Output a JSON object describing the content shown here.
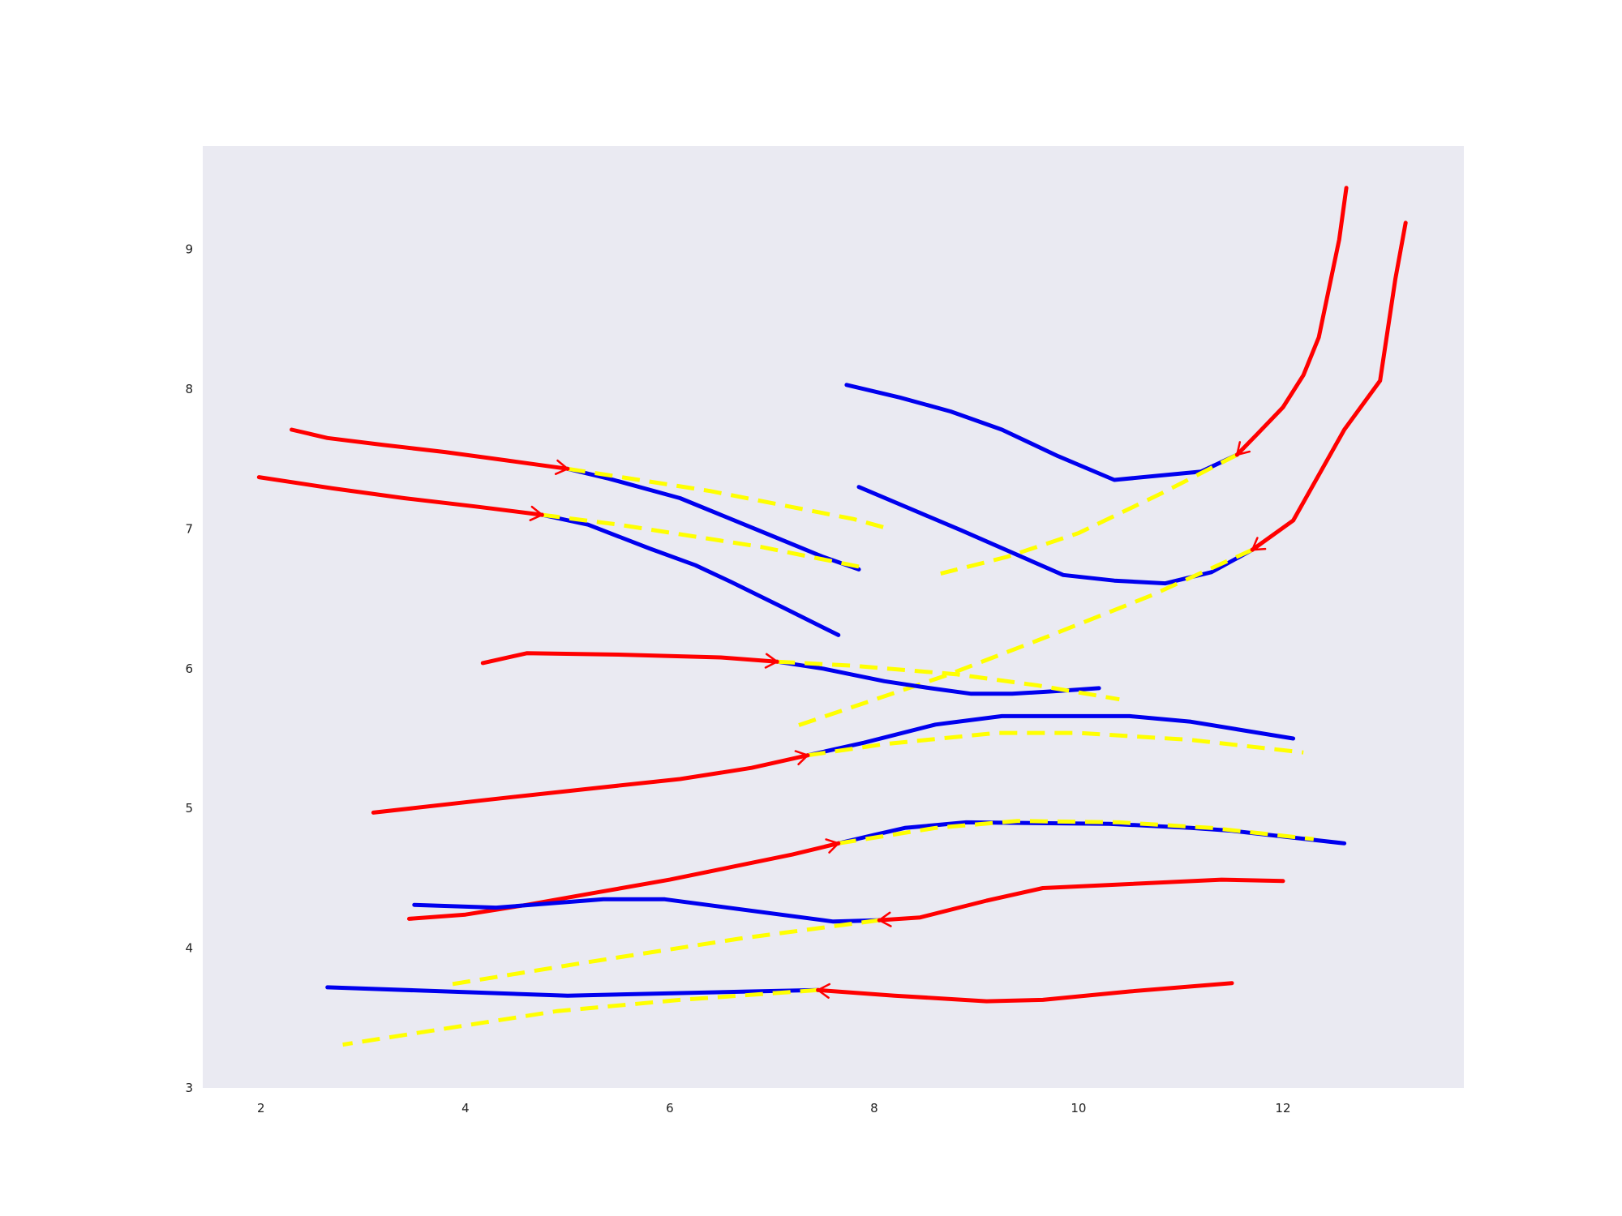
{
  "chart_data": {
    "type": "line",
    "title": "",
    "xlabel": "",
    "ylabel": "",
    "xlim": [
      1.43,
      13.77
    ],
    "ylim": [
      3.0,
      9.74
    ],
    "xticks": [
      2,
      4,
      6,
      8,
      10,
      12
    ],
    "yticks": [
      3,
      4,
      5,
      6,
      7,
      8,
      9
    ],
    "grid": false,
    "legend": "none",
    "colors": {
      "background": "#ffffff",
      "plot_background": "#eaeaf2",
      "observed": "#ff0000",
      "predicted": "#0000ee",
      "reference": "#ffff00",
      "tick_text": "#222222"
    },
    "trajectories": [
      {
        "observed": [
          [
            2.3,
            7.71
          ],
          [
            2.65,
            7.65
          ],
          [
            3.2,
            7.6
          ],
          [
            3.8,
            7.55
          ],
          [
            4.4,
            7.49
          ],
          [
            5.0,
            7.43
          ]
        ],
        "predicted": [
          [
            5.0,
            7.43
          ],
          [
            5.4,
            7.36
          ],
          [
            6.1,
            7.22
          ],
          [
            6.4,
            7.13
          ],
          [
            7.0,
            6.95
          ],
          [
            7.5,
            6.8
          ],
          [
            7.85,
            6.71
          ]
        ],
        "reference": [
          [
            5.0,
            7.43
          ],
          [
            5.7,
            7.35
          ],
          [
            6.4,
            7.27
          ],
          [
            7.1,
            7.17
          ],
          [
            7.8,
            7.07
          ],
          [
            8.1,
            7.01
          ]
        ]
      },
      {
        "observed": [
          [
            1.98,
            7.37
          ],
          [
            2.7,
            7.29
          ],
          [
            3.4,
            7.22
          ],
          [
            4.1,
            7.16
          ],
          [
            4.75,
            7.1
          ]
        ],
        "predicted": [
          [
            4.75,
            7.1
          ],
          [
            5.2,
            7.03
          ],
          [
            5.8,
            6.86
          ],
          [
            6.25,
            6.74
          ],
          [
            6.6,
            6.62
          ],
          [
            7.1,
            6.44
          ],
          [
            7.65,
            6.24
          ]
        ],
        "reference": [
          [
            4.75,
            7.1
          ],
          [
            5.5,
            7.03
          ],
          [
            6.2,
            6.95
          ],
          [
            6.9,
            6.87
          ],
          [
            7.85,
            6.73
          ]
        ]
      },
      {
        "observed": [
          [
            12.62,
            9.44
          ],
          [
            12.55,
            9.07
          ],
          [
            12.35,
            8.37
          ],
          [
            12.2,
            8.1
          ],
          [
            12.0,
            7.87
          ],
          [
            11.75,
            7.68
          ],
          [
            11.55,
            7.53
          ]
        ],
        "predicted": [
          [
            11.55,
            7.53
          ],
          [
            11.2,
            7.41
          ],
          [
            10.35,
            7.35
          ],
          [
            9.8,
            7.52
          ],
          [
            9.25,
            7.71
          ],
          [
            8.75,
            7.84
          ],
          [
            8.25,
            7.94
          ],
          [
            7.73,
            8.03
          ]
        ],
        "reference": [
          [
            11.55,
            7.53
          ],
          [
            10.8,
            7.25
          ],
          [
            10.0,
            6.97
          ],
          [
            9.3,
            6.8
          ],
          [
            8.65,
            6.68
          ]
        ]
      },
      {
        "observed": [
          [
            13.2,
            9.19
          ],
          [
            13.1,
            8.79
          ],
          [
            12.95,
            8.06
          ],
          [
            12.6,
            7.71
          ],
          [
            12.1,
            7.06
          ],
          [
            11.7,
            6.85
          ]
        ],
        "predicted": [
          [
            11.7,
            6.85
          ],
          [
            11.3,
            6.69
          ],
          [
            10.85,
            6.61
          ],
          [
            10.35,
            6.63
          ],
          [
            9.85,
            6.67
          ],
          [
            8.85,
            6.99
          ],
          [
            7.85,
            7.3
          ]
        ],
        "reference": [
          [
            11.7,
            6.85
          ],
          [
            10.7,
            6.52
          ],
          [
            9.7,
            6.23
          ],
          [
            8.7,
            5.95
          ],
          [
            7.2,
            5.58
          ]
        ]
      },
      {
        "observed": [
          [
            4.17,
            6.04
          ],
          [
            4.6,
            6.11
          ],
          [
            5.5,
            6.1
          ],
          [
            6.5,
            6.08
          ],
          [
            7.05,
            6.05
          ]
        ],
        "predicted": [
          [
            7.05,
            6.05
          ],
          [
            7.5,
            6.0
          ],
          [
            8.1,
            5.91
          ],
          [
            8.55,
            5.86
          ],
          [
            8.95,
            5.82
          ],
          [
            9.35,
            5.82
          ],
          [
            9.8,
            5.84
          ],
          [
            10.2,
            5.86
          ]
        ],
        "reference": [
          [
            7.05,
            6.05
          ],
          [
            7.8,
            6.02
          ],
          [
            8.8,
            5.96
          ],
          [
            9.6,
            5.88
          ],
          [
            10.4,
            5.78
          ]
        ]
      },
      {
        "observed": [
          [
            3.1,
            4.97
          ],
          [
            4.2,
            5.06
          ],
          [
            5.2,
            5.14
          ],
          [
            6.1,
            5.21
          ],
          [
            6.8,
            5.29
          ],
          [
            7.35,
            5.38
          ]
        ],
        "predicted": [
          [
            7.35,
            5.38
          ],
          [
            7.9,
            5.47
          ],
          [
            8.6,
            5.6
          ],
          [
            9.25,
            5.66
          ],
          [
            10.5,
            5.66
          ],
          [
            11.1,
            5.62
          ],
          [
            12.1,
            5.5
          ]
        ],
        "reference": [
          [
            7.35,
            5.38
          ],
          [
            8.1,
            5.46
          ],
          [
            9.2,
            5.54
          ],
          [
            10.0,
            5.54
          ],
          [
            11.1,
            5.49
          ],
          [
            12.2,
            5.4
          ]
        ]
      },
      {
        "observed": [
          [
            3.45,
            4.21
          ],
          [
            4.0,
            4.24
          ],
          [
            4.6,
            4.31
          ],
          [
            5.3,
            4.4
          ],
          [
            6.0,
            4.49
          ],
          [
            6.6,
            4.58
          ],
          [
            7.2,
            4.67
          ],
          [
            7.65,
            4.75
          ]
        ],
        "predicted": [
          [
            7.65,
            4.75
          ],
          [
            8.0,
            4.81
          ],
          [
            8.3,
            4.86
          ],
          [
            8.9,
            4.9
          ],
          [
            10.3,
            4.89
          ],
          [
            11.1,
            4.86
          ],
          [
            11.5,
            4.84
          ],
          [
            12.6,
            4.75
          ]
        ],
        "reference": [
          [
            7.65,
            4.75
          ],
          [
            8.6,
            4.86
          ],
          [
            9.4,
            4.91
          ],
          [
            10.4,
            4.9
          ],
          [
            11.3,
            4.86
          ],
          [
            12.3,
            4.78
          ]
        ]
      },
      {
        "observed": [
          [
            12.0,
            4.48
          ],
          [
            11.4,
            4.49
          ],
          [
            9.65,
            4.43
          ],
          [
            9.1,
            4.34
          ],
          [
            8.45,
            4.22
          ],
          [
            8.05,
            4.2
          ]
        ],
        "predicted": [
          [
            8.05,
            4.2
          ],
          [
            7.6,
            4.19
          ],
          [
            5.95,
            4.35
          ],
          [
            5.35,
            4.35
          ],
          [
            4.3,
            4.29
          ],
          [
            3.5,
            4.31
          ]
        ],
        "reference": [
          [
            8.05,
            4.2
          ],
          [
            6.7,
            4.07
          ],
          [
            5.2,
            3.9
          ],
          [
            3.85,
            3.74
          ]
        ]
      },
      {
        "observed": [
          [
            11.5,
            3.75
          ],
          [
            10.5,
            3.69
          ],
          [
            9.65,
            3.63
          ],
          [
            9.1,
            3.62
          ],
          [
            8.2,
            3.66
          ],
          [
            7.45,
            3.7
          ]
        ],
        "predicted": [
          [
            7.45,
            3.7
          ],
          [
            6.8,
            3.69
          ],
          [
            5.0,
            3.66
          ],
          [
            2.65,
            3.72
          ]
        ],
        "reference": [
          [
            7.45,
            3.7
          ],
          [
            6.1,
            3.63
          ],
          [
            4.9,
            3.55
          ],
          [
            2.8,
            3.31
          ]
        ]
      }
    ]
  }
}
